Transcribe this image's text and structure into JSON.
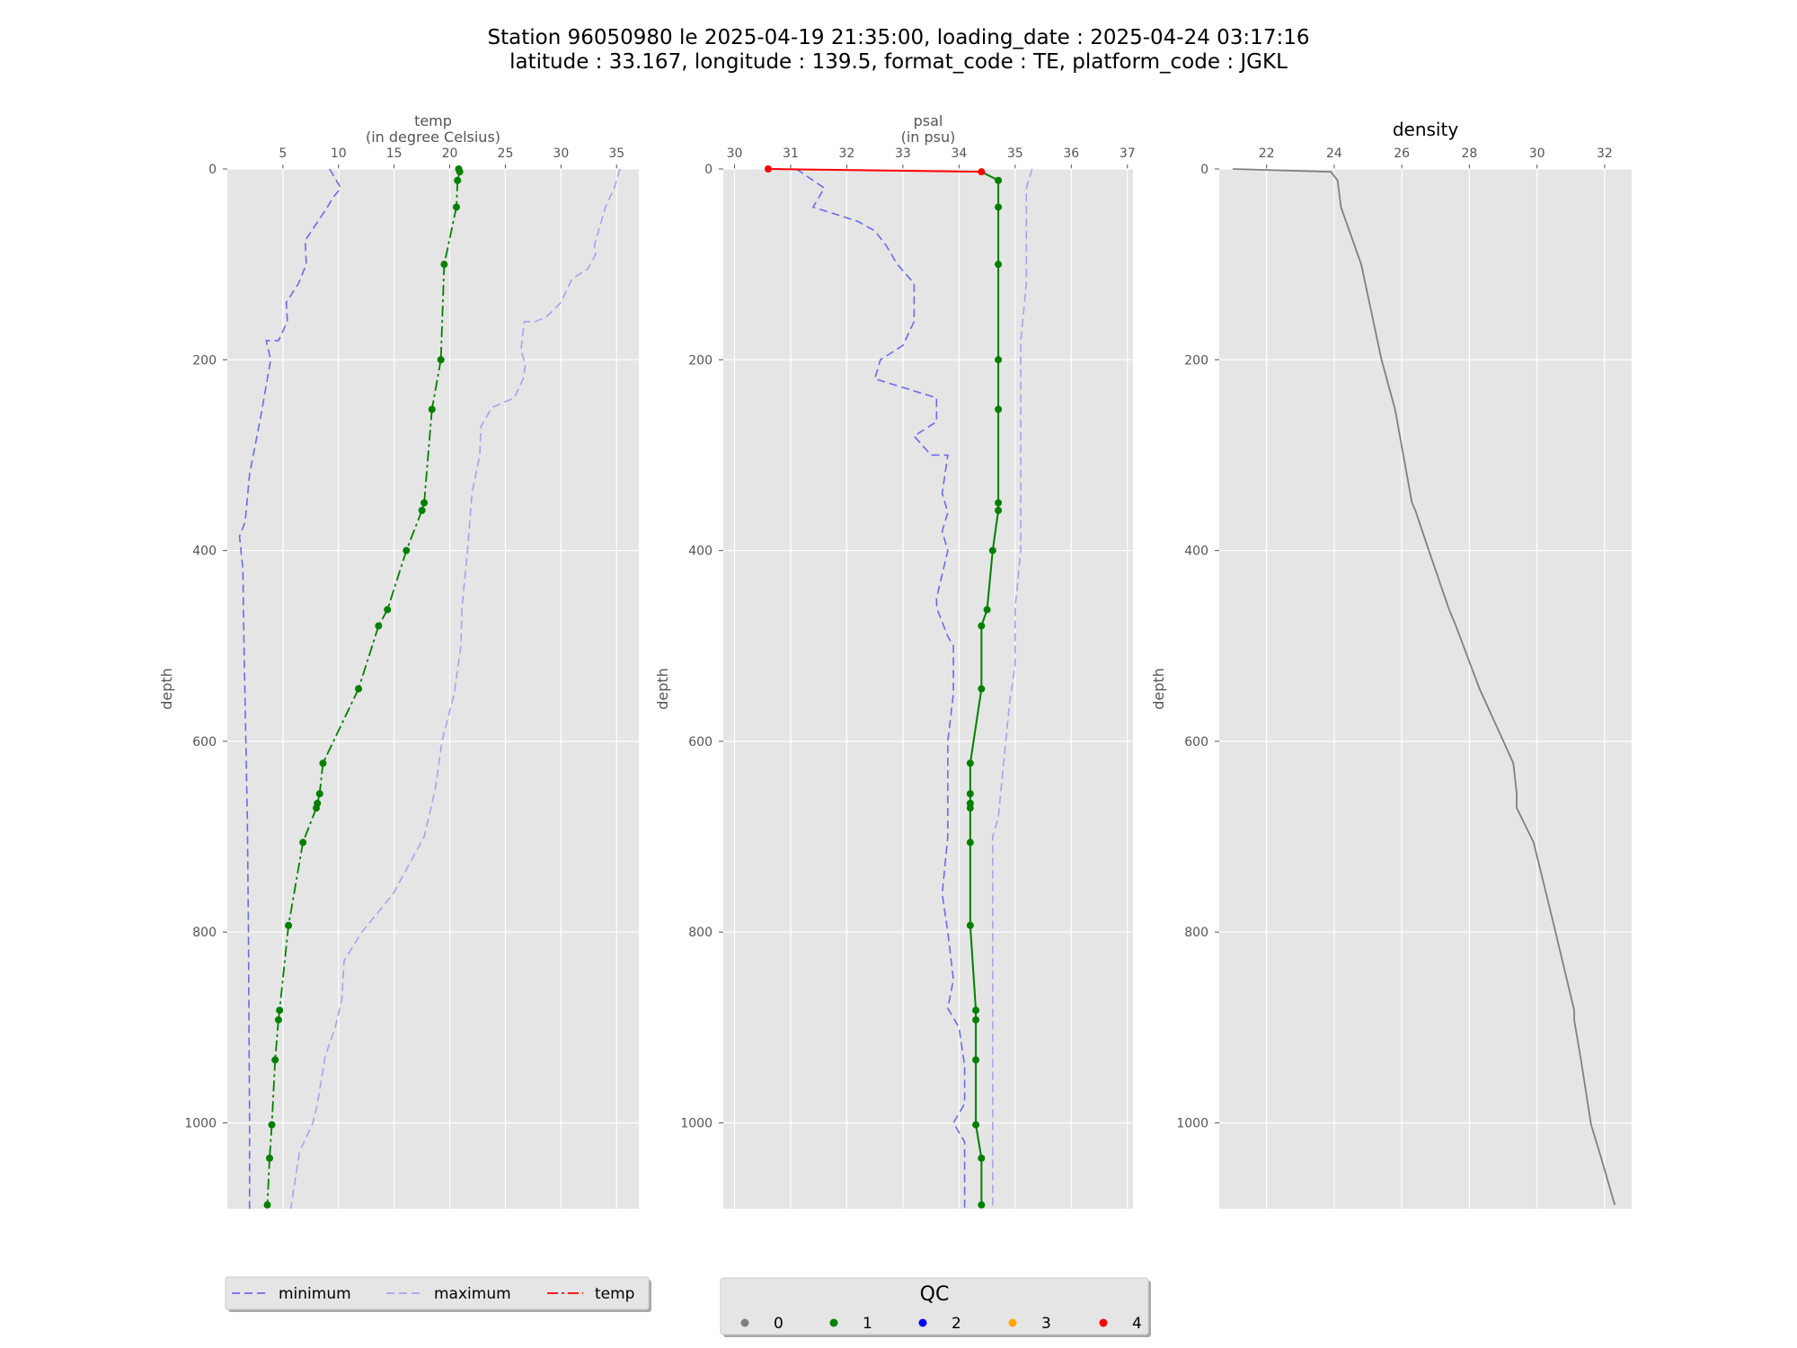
{
  "figure": {
    "title_line1": "Station 96050980 le 2025-04-19 21:35:00, loading_date : 2025-04-24 03:17:16",
    "title_line2": "latitude : 33.167, longitude : 139.5, format_code : TE, platform_code : JGKL"
  },
  "colors": {
    "panel_bg": "#e5e5e5",
    "grid": "#ffffff",
    "min_line": "#6a6aee",
    "max_line": "#a3a3ee",
    "qc1": "#008000",
    "qc4": "#ff0000",
    "density_line": "#808080",
    "qc_colors": [
      "#808080",
      "#008000",
      "#0000ff",
      "#ffa500",
      "#ff0000"
    ]
  },
  "legends": {
    "profile": {
      "items": [
        "minimum",
        "maximum",
        "temp"
      ]
    },
    "qc": {
      "title": "QC",
      "items": [
        "0",
        "1",
        "2",
        "3",
        "4"
      ]
    }
  },
  "chart_data": [
    {
      "type": "line",
      "title": "temp\n(in degree Celsius)",
      "ylabel": "depth",
      "xlim": [
        0,
        37
      ],
      "ylim": [
        1090,
        0
      ],
      "x_ticks": [
        5,
        10,
        15,
        20,
        25,
        30,
        35
      ],
      "y_ticks": [
        0,
        200,
        400,
        600,
        800,
        1000
      ],
      "grid": true,
      "series": [
        {
          "name": "minimum",
          "style": "dashed",
          "points": [
            [
              9.2,
              0
            ],
            [
              10.2,
              20
            ],
            [
              9.5,
              30
            ],
            [
              9,
              40
            ],
            [
              7,
              75
            ],
            [
              7.1,
              100
            ],
            [
              6.4,
              120
            ],
            [
              5.3,
              140
            ],
            [
              5.4,
              160
            ],
            [
              4.6,
              180
            ],
            [
              3.5,
              180
            ],
            [
              3.9,
              200
            ],
            [
              3,
              260
            ],
            [
              2,
              320
            ],
            [
              1.6,
              370
            ],
            [
              1.1,
              385
            ],
            [
              1.4,
              420
            ],
            [
              1.5,
              500
            ],
            [
              1.7,
              620
            ],
            [
              1.8,
              680
            ],
            [
              1.9,
              800
            ],
            [
              2,
              1000
            ],
            [
              2,
              1090
            ]
          ]
        },
        {
          "name": "maximum",
          "style": "dashed",
          "points": [
            [
              35.3,
              0
            ],
            [
              34.8,
              20
            ],
            [
              34,
              40
            ],
            [
              33,
              80
            ],
            [
              33.1,
              90
            ],
            [
              32.4,
              105
            ],
            [
              31,
              115
            ],
            [
              30,
              140
            ],
            [
              28.7,
              155
            ],
            [
              27.7,
              160
            ],
            [
              26.7,
              160
            ],
            [
              26.4,
              190
            ],
            [
              26.8,
              205
            ],
            [
              26.6,
              220
            ],
            [
              25.8,
              240
            ],
            [
              23.8,
              250
            ],
            [
              22.8,
              270
            ],
            [
              22.7,
              300
            ],
            [
              22,
              340
            ],
            [
              21.6,
              400
            ],
            [
              21.1,
              460
            ],
            [
              21,
              500
            ],
            [
              20.4,
              550
            ],
            [
              19.3,
              600
            ],
            [
              18.7,
              650
            ],
            [
              17.7,
              700
            ],
            [
              14.9,
              760
            ],
            [
              12.1,
              800
            ],
            [
              10.5,
              830
            ],
            [
              10.3,
              870
            ],
            [
              9.7,
              900
            ],
            [
              8.8,
              930
            ],
            [
              8.1,
              980
            ],
            [
              7.7,
              1000
            ],
            [
              6.5,
              1030
            ],
            [
              6.1,
              1060
            ],
            [
              5.7,
              1090
            ]
          ]
        },
        {
          "name": "temp",
          "style": "dashdot",
          "points": [
            [
              20.8,
              0
            ],
            [
              20.9,
              3
            ],
            [
              20.7,
              12
            ],
            [
              20.6,
              40
            ],
            [
              19.5,
              100
            ],
            [
              19.2,
              200
            ],
            [
              18.4,
              252
            ],
            [
              17.7,
              350
            ],
            [
              17.5,
              358
            ],
            [
              16.1,
              400
            ],
            [
              14.4,
              462
            ],
            [
              13.6,
              479
            ],
            [
              11.8,
              545
            ],
            [
              8.6,
              623
            ],
            [
              8.3,
              655
            ],
            [
              8.1,
              665
            ],
            [
              8,
              670
            ],
            [
              6.8,
              706
            ],
            [
              5.5,
              793
            ],
            [
              4.7,
              882
            ],
            [
              4.6,
              892
            ],
            [
              4.3,
              934
            ],
            [
              4,
              1002
            ],
            [
              3.8,
              1037
            ],
            [
              3.6,
              1086
            ]
          ],
          "qc": [
            1,
            1,
            1,
            1,
            1,
            1,
            1,
            1,
            1,
            1,
            1,
            1,
            1,
            1,
            1,
            1,
            1,
            1,
            1,
            1,
            1,
            1,
            1,
            1,
            1
          ]
        }
      ]
    },
    {
      "type": "line",
      "title": "psal\n(in psu)",
      "ylabel": "depth",
      "xlim": [
        29.8,
        37.1
      ],
      "ylim": [
        1090,
        0
      ],
      "x_ticks": [
        30,
        31,
        32,
        33,
        34,
        35,
        36,
        37
      ],
      "y_ticks": [
        0,
        200,
        400,
        600,
        800,
        1000
      ],
      "grid": true,
      "series": [
        {
          "name": "minimum",
          "style": "dashed",
          "points": [
            [
              31.1,
              0
            ],
            [
              31.6,
              20
            ],
            [
              31.4,
              40
            ],
            [
              32.2,
              55
            ],
            [
              32.5,
              65
            ],
            [
              32.7,
              80
            ],
            [
              32.9,
              100
            ],
            [
              33.2,
              120
            ],
            [
              33.2,
              160
            ],
            [
              33,
              185
            ],
            [
              32.6,
              200
            ],
            [
              32.5,
              220
            ],
            [
              33.6,
              240
            ],
            [
              33.6,
              265
            ],
            [
              33.2,
              280
            ],
            [
              33.5,
              300
            ],
            [
              33.8,
              300
            ],
            [
              33.7,
              340
            ],
            [
              33.8,
              360
            ],
            [
              33.7,
              380
            ],
            [
              33.8,
              400
            ],
            [
              33.6,
              450
            ],
            [
              33.6,
              460
            ],
            [
              33.8,
              490
            ],
            [
              33.9,
              500
            ],
            [
              33.9,
              550
            ],
            [
              33.8,
              600
            ],
            [
              33.8,
              650
            ],
            [
              33.8,
              700
            ],
            [
              33.7,
              760
            ],
            [
              33.8,
              800
            ],
            [
              33.9,
              850
            ],
            [
              33.8,
              880
            ],
            [
              34,
              900
            ],
            [
              34.1,
              940
            ],
            [
              34.1,
              980
            ],
            [
              33.9,
              1000
            ],
            [
              34.1,
              1020
            ],
            [
              34.1,
              1090
            ]
          ]
        },
        {
          "name": "maximum",
          "style": "dashed",
          "points": [
            [
              35.3,
              0
            ],
            [
              35.2,
              20
            ],
            [
              35.2,
              80
            ],
            [
              35.2,
              120
            ],
            [
              35.1,
              180
            ],
            [
              35.1,
              200
            ],
            [
              35.1,
              300
            ],
            [
              35.1,
              400
            ],
            [
              35,
              460
            ],
            [
              35,
              520
            ],
            [
              34.9,
              560
            ],
            [
              34.8,
              620
            ],
            [
              34.7,
              680
            ],
            [
              34.6,
              700
            ],
            [
              34.6,
              800
            ],
            [
              34.6,
              900
            ],
            [
              34.6,
              1000
            ],
            [
              34.6,
              1090
            ]
          ]
        },
        {
          "name": "psal",
          "style": "solid",
          "points": [
            [
              30.6,
              0
            ],
            [
              34.4,
              3
            ],
            [
              34.7,
              12
            ],
            [
              34.7,
              40
            ],
            [
              34.7,
              100
            ],
            [
              34.7,
              200
            ],
            [
              34.7,
              252
            ],
            [
              34.7,
              350
            ],
            [
              34.7,
              358
            ],
            [
              34.6,
              400
            ],
            [
              34.5,
              462
            ],
            [
              34.4,
              479
            ],
            [
              34.4,
              545
            ],
            [
              34.2,
              623
            ],
            [
              34.2,
              655
            ],
            [
              34.2,
              665
            ],
            [
              34.2,
              670
            ],
            [
              34.2,
              706
            ],
            [
              34.2,
              793
            ],
            [
              34.3,
              882
            ],
            [
              34.3,
              892
            ],
            [
              34.3,
              934
            ],
            [
              34.3,
              1002
            ],
            [
              34.4,
              1037
            ],
            [
              34.4,
              1086
            ]
          ],
          "qc": [
            4,
            4,
            1,
            1,
            1,
            1,
            1,
            1,
            1,
            1,
            1,
            1,
            1,
            1,
            1,
            1,
            1,
            1,
            1,
            1,
            1,
            1,
            1,
            1,
            1
          ]
        }
      ]
    },
    {
      "type": "line",
      "title": "density",
      "ylabel": "depth",
      "xlim": [
        20.6,
        32.8
      ],
      "ylim": [
        1090,
        0
      ],
      "x_ticks": [
        22,
        24,
        26,
        28,
        30,
        32
      ],
      "y_ticks": [
        0,
        200,
        400,
        600,
        800,
        1000
      ],
      "grid": true,
      "series": [
        {
          "name": "density",
          "style": "solid",
          "points": [
            [
              21,
              0
            ],
            [
              23.9,
              3
            ],
            [
              24.1,
              12
            ],
            [
              24.2,
              40
            ],
            [
              24.8,
              100
            ],
            [
              25.4,
              200
            ],
            [
              25.8,
              252
            ],
            [
              26.3,
              350
            ],
            [
              26.4,
              358
            ],
            [
              26.8,
              400
            ],
            [
              27.4,
              462
            ],
            [
              27.6,
              479
            ],
            [
              28.3,
              545
            ],
            [
              29.3,
              623
            ],
            [
              29.4,
              655
            ],
            [
              29.4,
              665
            ],
            [
              29.4,
              670
            ],
            [
              29.9,
              706
            ],
            [
              30.5,
              793
            ],
            [
              31.1,
              882
            ],
            [
              31.1,
              892
            ],
            [
              31.3,
              934
            ],
            [
              31.6,
              1002
            ],
            [
              31.9,
              1037
            ],
            [
              32.3,
              1086
            ]
          ]
        }
      ]
    }
  ]
}
